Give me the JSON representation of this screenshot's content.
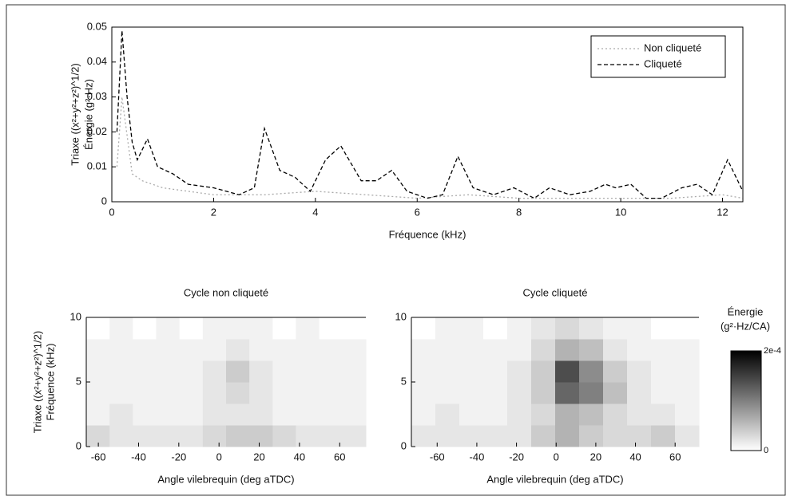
{
  "chart_data": [
    {
      "type": "line",
      "ylabel": [
        "Triaxe ((x²+y²+z²)^1/2)",
        "Énergie (g²·Hz)"
      ],
      "xlabel": "Fréquence (kHz)",
      "xlim": [
        0,
        12.4
      ],
      "xticks": [
        0,
        2,
        4,
        6,
        8,
        10,
        12
      ],
      "ylim": [
        0,
        0.05
      ],
      "yticks": [
        0,
        0.01,
        0.02,
        0.03,
        0.04,
        0.05
      ],
      "legend": "upper right",
      "series": [
        {
          "name": "Non cliqueté",
          "color": "#aaaaaa",
          "dash": "2,3",
          "x": [
            0.1,
            0.2,
            0.4,
            0.6,
            1,
            1.5,
            2,
            3,
            4,
            5,
            6,
            7,
            8,
            9,
            10,
            11,
            12,
            12.4
          ],
          "values": [
            0.01,
            0.03,
            0.008,
            0.006,
            0.004,
            0.003,
            0.002,
            0.002,
            0.003,
            0.002,
            0.001,
            0.002,
            0.001,
            0.001,
            0.001,
            0.001,
            0.002,
            0.001
          ]
        },
        {
          "name": "Cliqueté",
          "color": "#000000",
          "dash": "5,3",
          "x": [
            0.1,
            0.2,
            0.3,
            0.4,
            0.5,
            0.7,
            0.9,
            1.2,
            1.5,
            2,
            2.5,
            2.8,
            3,
            3.3,
            3.6,
            3.9,
            4.2,
            4.5,
            4.9,
            5.2,
            5.5,
            5.8,
            6.2,
            6.5,
            6.8,
            7.1,
            7.5,
            7.9,
            8.3,
            8.6,
            9,
            9.4,
            9.7,
            9.9,
            10.2,
            10.5,
            10.8,
            11.2,
            11.5,
            11.8,
            12.1,
            12.4
          ],
          "values": [
            0.02,
            0.049,
            0.03,
            0.017,
            0.012,
            0.018,
            0.01,
            0.008,
            0.005,
            0.004,
            0.002,
            0.004,
            0.021,
            0.009,
            0.007,
            0.003,
            0.012,
            0.016,
            0.006,
            0.006,
            0.009,
            0.003,
            0.001,
            0.002,
            0.013,
            0.004,
            0.002,
            0.004,
            0.001,
            0.004,
            0.002,
            0.003,
            0.005,
            0.004,
            0.005,
            0.001,
            0.001,
            0.004,
            0.005,
            0.002,
            0.012,
            0.003
          ]
        }
      ]
    },
    {
      "type": "heatmap",
      "title": "Cycle non cliqueté",
      "ylabel": [
        "Triaxe ((x²+y²+z²)^1/2)",
        "Fréquence (kHz)"
      ],
      "xlabel": "Angle vilebrequin (deg aTDC)",
      "xlim": [
        -66,
        73
      ],
      "xticks": [
        -60,
        -40,
        -20,
        0,
        20,
        40,
        60
      ],
      "ylim": [
        0,
        10
      ],
      "yticks": [
        0,
        5,
        10
      ],
      "z": [
        [
          3e-05,
          2e-05,
          2e-05,
          2e-05,
          2e-05,
          3e-05,
          4e-05,
          4e-05,
          3e-05,
          2e-05,
          2e-05,
          2e-05
        ],
        [
          1e-05,
          2e-05,
          1e-05,
          1e-05,
          1e-05,
          2e-05,
          2e-05,
          2e-05,
          1e-05,
          1e-05,
          1e-05,
          1e-05
        ],
        [
          1e-05,
          1e-05,
          1e-05,
          1e-05,
          1e-05,
          2e-05,
          3e-05,
          2e-05,
          1e-05,
          1e-05,
          1e-05,
          1e-05
        ],
        [
          1e-05,
          1e-05,
          1e-05,
          1e-05,
          1e-05,
          2e-05,
          4e-05,
          2e-05,
          1e-05,
          1e-05,
          1e-05,
          1e-05
        ],
        [
          1e-05,
          1e-05,
          1e-05,
          1e-05,
          1e-05,
          1e-05,
          2e-05,
          1e-05,
          1e-05,
          1e-05,
          1e-05,
          1e-05
        ],
        [
          0,
          1e-05,
          0,
          1e-05,
          0,
          1e-05,
          1e-05,
          1e-05,
          0,
          1e-05,
          0,
          0
        ]
      ]
    },
    {
      "type": "heatmap",
      "title": "Cycle cliqueté",
      "xlabel": "Angle vilebrequin (deg aTDC)",
      "xlim": [
        -73,
        72
      ],
      "xticks": [
        -60,
        -40,
        -20,
        0,
        20,
        40,
        60
      ],
      "ylim": [
        0,
        10
      ],
      "yticks": [
        0,
        5,
        10
      ],
      "z": [
        [
          2e-05,
          2e-05,
          2e-05,
          2e-05,
          2e-05,
          4e-05,
          6e-05,
          4e-05,
          3e-05,
          3e-05,
          4e-05,
          2e-05
        ],
        [
          1e-05,
          2e-05,
          1e-05,
          1e-05,
          2e-05,
          3e-05,
          6e-05,
          5e-05,
          3e-05,
          2e-05,
          2e-05,
          1e-05
        ],
        [
          1e-05,
          1e-05,
          1e-05,
          1e-05,
          2e-05,
          4e-05,
          0.00012,
          0.0001,
          5e-05,
          2e-05,
          1e-05,
          1e-05
        ],
        [
          1e-05,
          1e-05,
          1e-05,
          1e-05,
          2e-05,
          4e-05,
          0.00014,
          9e-05,
          4e-05,
          2e-05,
          1e-05,
          1e-05
        ],
        [
          1e-05,
          1e-05,
          1e-05,
          1e-05,
          1e-05,
          3e-05,
          6e-05,
          5e-05,
          2e-05,
          1e-05,
          1e-05,
          1e-05
        ],
        [
          0,
          1e-05,
          1e-05,
          0,
          1e-05,
          2e-05,
          3e-05,
          2e-05,
          1e-05,
          1e-05,
          0,
          0
        ]
      ],
      "colorbar": {
        "title": [
          "Énergie",
          "(g²·Hz/CA)"
        ],
        "zlim": [
          0,
          0.0002
        ],
        "zticks": [
          0,
          {
            "value": 0.0002,
            "label": "2e-4"
          }
        ]
      }
    }
  ]
}
